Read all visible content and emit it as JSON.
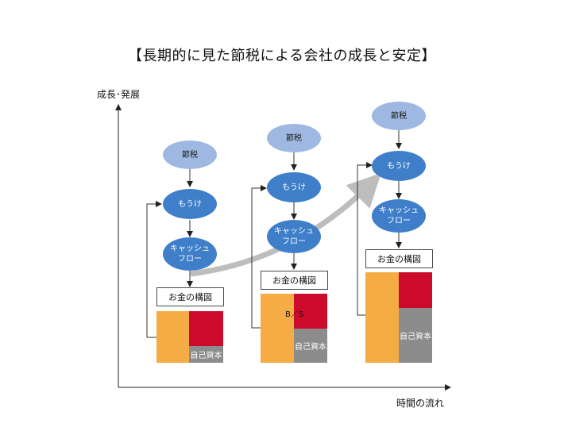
{
  "title": "【長期的に見た節税による会社の成長と安定】",
  "y_axis_label": "成長･発展",
  "x_axis_label": "時間の流れ",
  "stages": [
    {
      "tax": "節税",
      "profit": "もうけ",
      "cash_line1": "キャッシュ",
      "cash_line2": "フロー",
      "money": "お金の構図",
      "equity": "自己資本",
      "bs": ""
    },
    {
      "tax": "節税",
      "profit": "もうけ",
      "cash_line1": "キャッシュ",
      "cash_line2": "フロー",
      "money": "お金の構図",
      "equity": "自己資本",
      "bs": "B／S"
    },
    {
      "tax": "節税",
      "profit": "もうけ",
      "cash_line1": "キャッシュ",
      "cash_line2": "フロー",
      "money": "お金の構図",
      "equity": "自己資本",
      "bs": ""
    }
  ],
  "colors": {
    "light_oval": "#9fb8e2",
    "oval": "#3f7fc9",
    "orange": "#f5ac45",
    "red": "#cc0a2b",
    "gray": "#8c8c8c",
    "arrow": "#bdbdbd"
  }
}
